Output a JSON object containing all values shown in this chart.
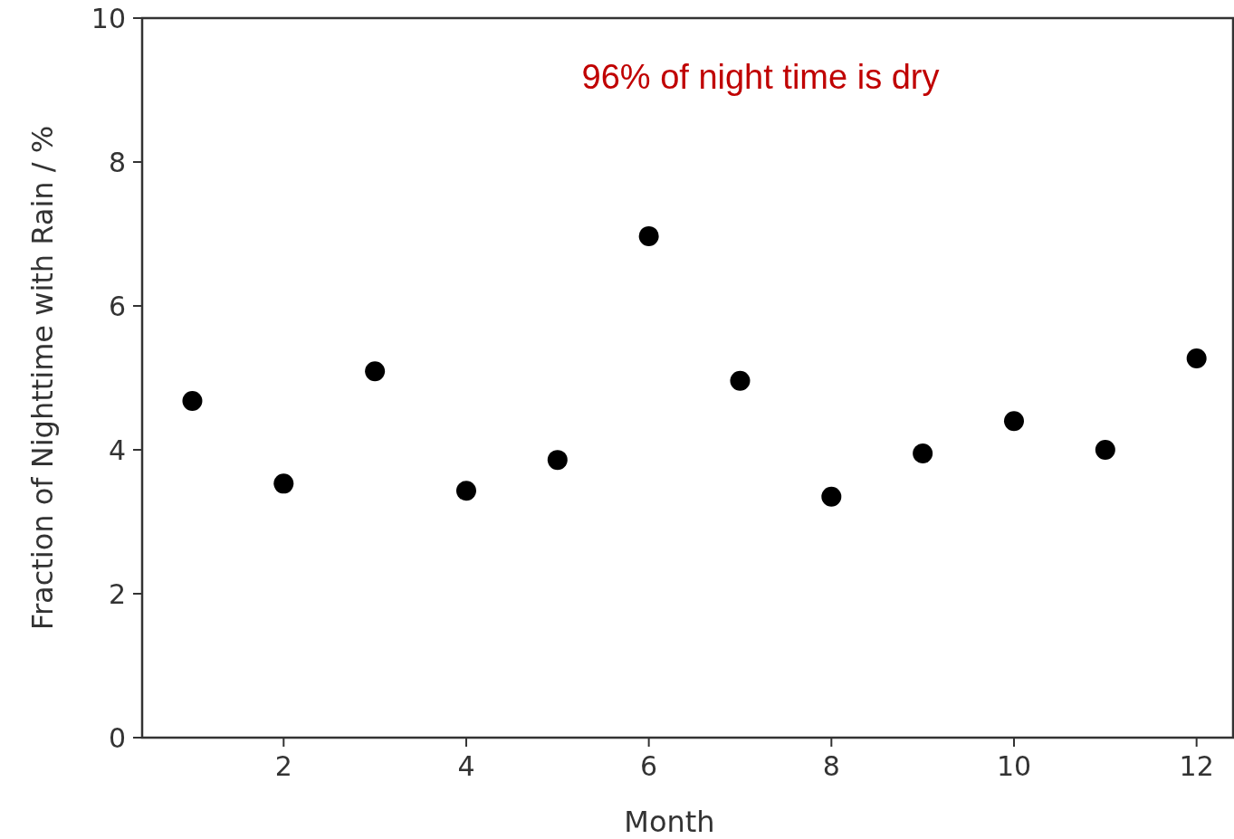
{
  "chart_data": {
    "type": "scatter",
    "xlabel": "Month",
    "ylabel": "Fraction of Nighttime with Rain / %",
    "x": [
      1,
      2,
      3,
      4,
      5,
      6,
      7,
      8,
      9,
      10,
      11,
      12
    ],
    "series": [
      {
        "color": "#000000",
        "values": [
          4.68,
          3.53,
          5.09,
          3.43,
          3.86,
          6.97,
          4.96,
          3.35,
          3.95,
          4.4,
          4.0,
          5.27
        ]
      }
    ],
    "xlim": [
      0.45,
      12.4
    ],
    "xticks": [
      2,
      4,
      6,
      8,
      10,
      12
    ],
    "ylim": [
      0,
      10
    ],
    "yticks": [
      0,
      2,
      4,
      6,
      8,
      10
    ],
    "marker": "circle",
    "annotations": [
      "96% of night time is dry"
    ]
  }
}
